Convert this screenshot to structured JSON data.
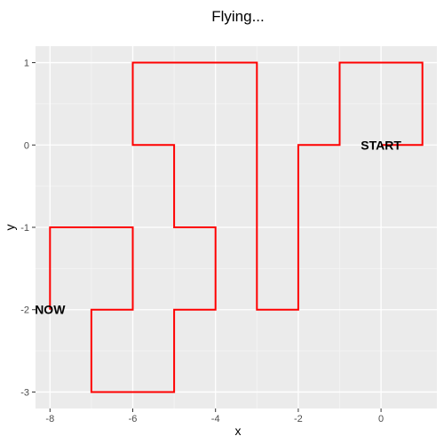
{
  "chart_data": {
    "type": "line",
    "title": "Flying...",
    "xlabel": "x",
    "ylabel": "y",
    "xlim": [
      -8.35,
      1.35
    ],
    "ylim": [
      -3.2,
      1.2
    ],
    "x_ticks": [
      -8,
      -6,
      -4,
      -2,
      0
    ],
    "x_tick_labels": [
      "-8",
      "-6",
      "-4",
      "-2",
      "0"
    ],
    "y_ticks": [
      -3,
      -2,
      -1,
      0,
      1
    ],
    "y_tick_labels": [
      "-3",
      "-2",
      "-1",
      "0",
      "1"
    ],
    "grid": true,
    "series": [
      {
        "color": "#ff0000",
        "x": [
          0,
          1,
          1,
          -1,
          -1,
          -2,
          -2,
          -3,
          -3,
          -6,
          -6,
          -5,
          -5,
          -4,
          -4,
          -5,
          -5,
          -7,
          -7,
          -6,
          -6,
          -8,
          -8
        ],
        "y": [
          0,
          0,
          1,
          1,
          0,
          0,
          -2,
          -2,
          1,
          1,
          0,
          0,
          -1,
          -1,
          -2,
          -2,
          -3,
          -3,
          -2,
          -2,
          -1,
          -1,
          -2
        ]
      }
    ],
    "annotations": [
      {
        "text": "START",
        "x": 0,
        "y": 0
      },
      {
        "text": "NOW",
        "x": -8,
        "y": -2
      }
    ]
  }
}
